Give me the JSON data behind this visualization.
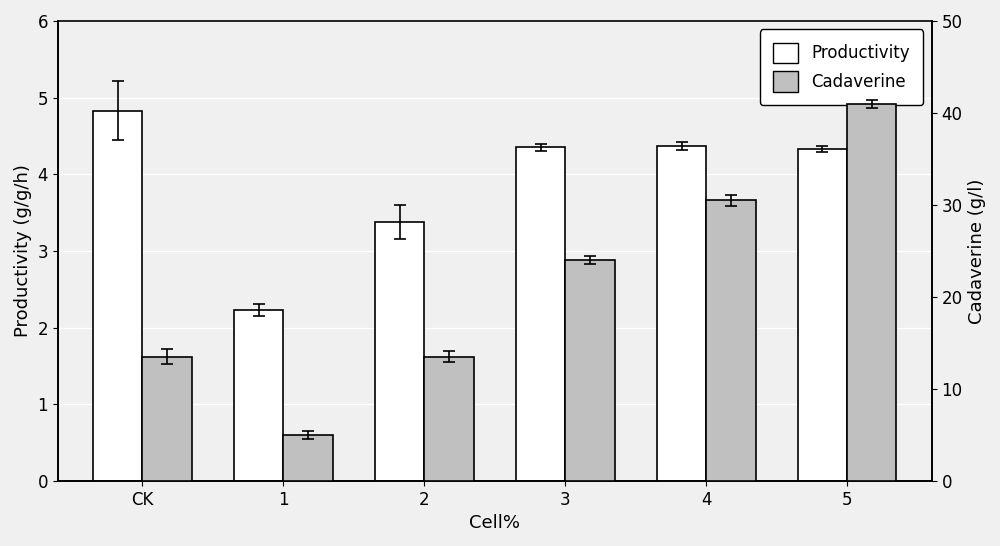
{
  "categories": [
    "CK",
    "1",
    "2",
    "3",
    "4",
    "5"
  ],
  "productivity": [
    4.83,
    2.23,
    3.38,
    4.35,
    4.37,
    4.33
  ],
  "productivity_err": [
    0.38,
    0.08,
    0.22,
    0.05,
    0.05,
    0.04
  ],
  "cadaverine": [
    13.5,
    5.0,
    13.5,
    24.0,
    30.5,
    41.0
  ],
  "cadaverine_err": [
    0.85,
    0.42,
    0.6,
    0.42,
    0.6,
    0.42
  ],
  "ylabel_left": "Productivity (g/g/h)",
  "ylabel_right": "Cadaverine (g/l)",
  "xlabel": "Cell%",
  "ylim_left": [
    0,
    6
  ],
  "ylim_right": [
    0,
    50
  ],
  "yticks_left": [
    0,
    1,
    2,
    3,
    4,
    5,
    6
  ],
  "yticks_right": [
    0,
    10,
    20,
    30,
    40,
    50
  ],
  "bar_width": 0.35,
  "productivity_color": "#ffffff",
  "cadaverine_color": "#c0c0c0",
  "edge_color": "#000000",
  "legend_labels": [
    "Productivity",
    "Cadaverine"
  ],
  "background_color": "#f0f0f0",
  "grid_color": "#ffffff",
  "figsize": [
    10.0,
    5.46
  ],
  "dpi": 100
}
